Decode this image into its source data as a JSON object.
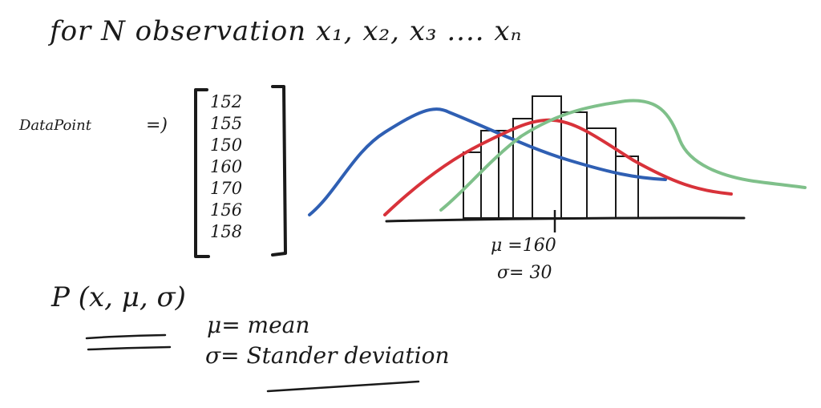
{
  "heading": "for N observation x₁, x₂, x₃ .... xₙ",
  "data_points": {
    "label": "DataPoint",
    "arrow": "=)",
    "values": [
      "152",
      "155",
      "150",
      "160",
      "170",
      "156",
      "158"
    ]
  },
  "graph": {
    "mu_label": "μ =160",
    "sigma_label": "σ= 30"
  },
  "formula": "P (x, μ, σ)",
  "definitions": {
    "mu": "μ= mean",
    "sigma": "σ=  Stander deviation"
  },
  "colors": {
    "ink": "#1a1a1a",
    "blue": "#2f5fb3",
    "red": "#d8323a",
    "green": "#7fc08a"
  }
}
